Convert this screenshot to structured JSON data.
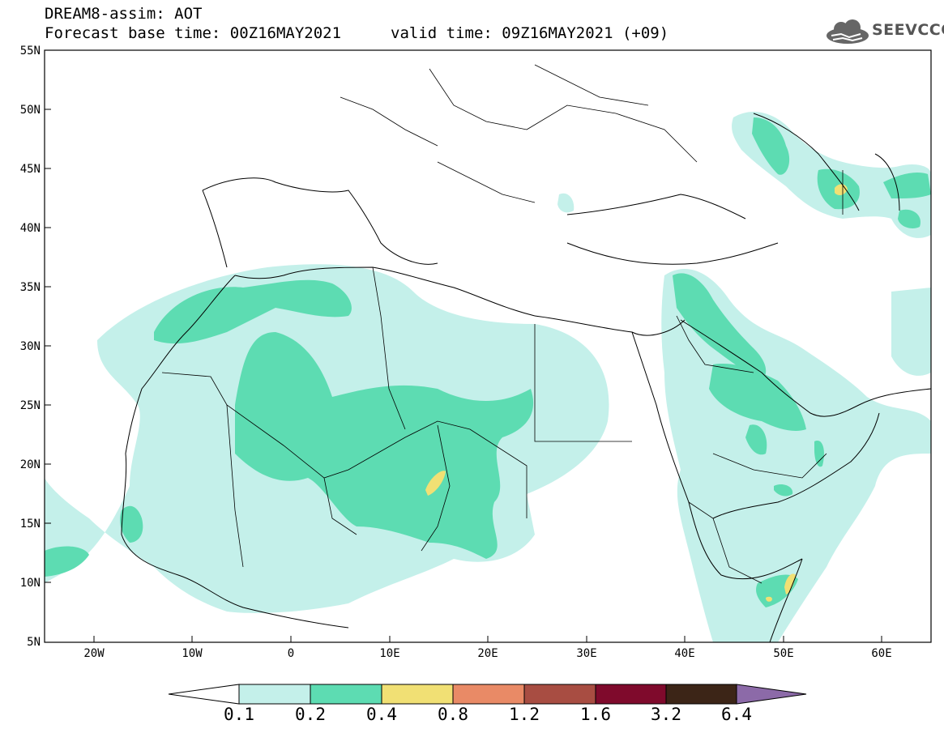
{
  "header": {
    "title": "DREAM8-assim: AOT",
    "base_time_label": "Forecast base time: 00Z16MAY2021",
    "valid_time_label": "valid time: 09Z16MAY2021 (+09)"
  },
  "logo": {
    "text": "SEEVCCC"
  },
  "map": {
    "lat_labels": [
      "55N",
      "50N",
      "45N",
      "40N",
      "35N",
      "30N",
      "25N",
      "20N",
      "15N",
      "10N",
      "5N"
    ],
    "lon_labels": [
      "20W",
      "10W",
      "0",
      "10E",
      "20E",
      "30E",
      "40E",
      "50E",
      "60E"
    ]
  },
  "colorbar": {
    "levels": [
      "0.1",
      "0.2",
      "0.4",
      "0.8",
      "1.2",
      "1.6",
      "3.2",
      "6.4"
    ],
    "colors": [
      "#c4f0ea",
      "#5ddcb2",
      "#f1e074",
      "#e98a66",
      "#a84d42",
      "#7f0a2c",
      "#3c2517",
      "#8c6aa8"
    ]
  }
}
